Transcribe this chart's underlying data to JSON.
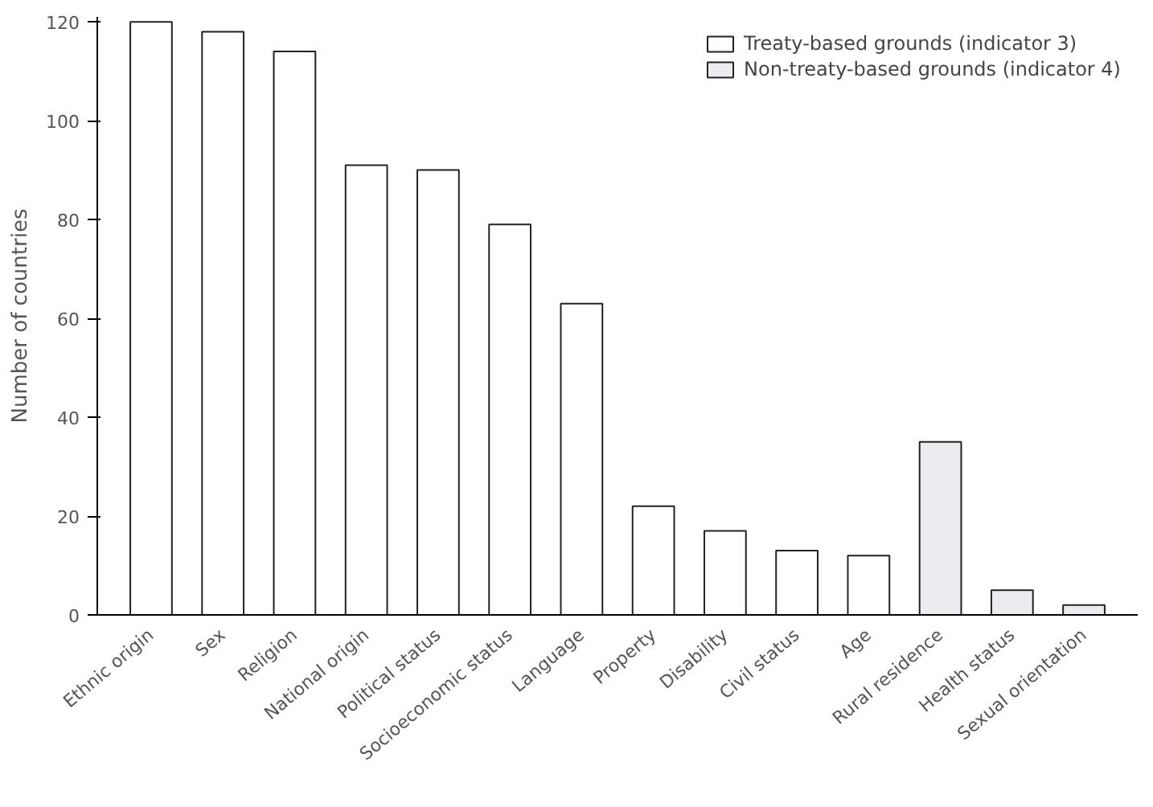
{
  "chart_data": {
    "type": "bar",
    "ylabel": "Number of countries",
    "categories": [
      "Ethnic origin",
      "Sex",
      "Religion",
      "National origin",
      "Political status",
      "Socioeconomic status",
      "Language",
      "Property",
      "Disability",
      "Civil status",
      "Age",
      "Rural residence",
      "Health status",
      "Sexual orientation"
    ],
    "series": [
      {
        "name": "Treaty-based grounds (indicator 3)",
        "color": "#ffffff",
        "values": [
          120,
          118,
          114,
          91,
          90,
          79,
          63,
          22,
          17,
          13,
          12,
          null,
          null,
          null
        ]
      },
      {
        "name": "Non-treaty-based grounds (indicator 4)",
        "color": "#ecebf0",
        "values": [
          null,
          null,
          null,
          null,
          null,
          null,
          null,
          null,
          null,
          null,
          null,
          35,
          5,
          2
        ]
      }
    ],
    "ylim": [
      0,
      121
    ],
    "yticks": [
      0,
      20,
      40,
      60,
      80,
      100,
      120
    ],
    "grid": false,
    "legend": "top right"
  }
}
